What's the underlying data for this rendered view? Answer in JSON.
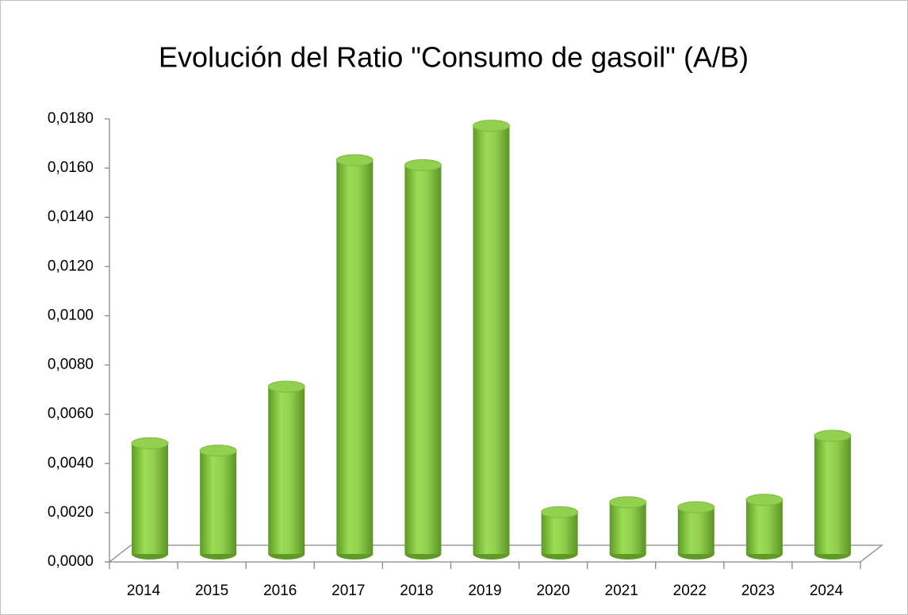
{
  "chart_data": {
    "type": "bar3d",
    "title": "Evolución del Ratio \"Consumo de gasoil\" (A/B)",
    "categories": [
      "2014",
      "2015",
      "2016",
      "2017",
      "2018",
      "2019",
      "2020",
      "2021",
      "2022",
      "2023",
      "2024"
    ],
    "values": [
      0.0045,
      0.0042,
      0.0068,
      0.016,
      0.0158,
      0.0174,
      0.0017,
      0.0021,
      0.0019,
      0.0022,
      0.0048
    ],
    "color": "#92d050",
    "ylim": [
      0,
      0.018
    ],
    "yticks": [
      {
        "value": 0,
        "label": "0,0000"
      },
      {
        "value": 0.002,
        "label": "0,0020"
      },
      {
        "value": 0.004,
        "label": "0,0040"
      },
      {
        "value": 0.006,
        "label": "0,0060"
      },
      {
        "value": 0.008,
        "label": "0,0080"
      },
      {
        "value": 0.01,
        "label": "0,0100"
      },
      {
        "value": 0.012,
        "label": "0,0120"
      },
      {
        "value": 0.014,
        "label": "0,0140"
      },
      {
        "value": 0.016,
        "label": "0,0160"
      },
      {
        "value": 0.018,
        "label": "0,0180"
      }
    ]
  }
}
